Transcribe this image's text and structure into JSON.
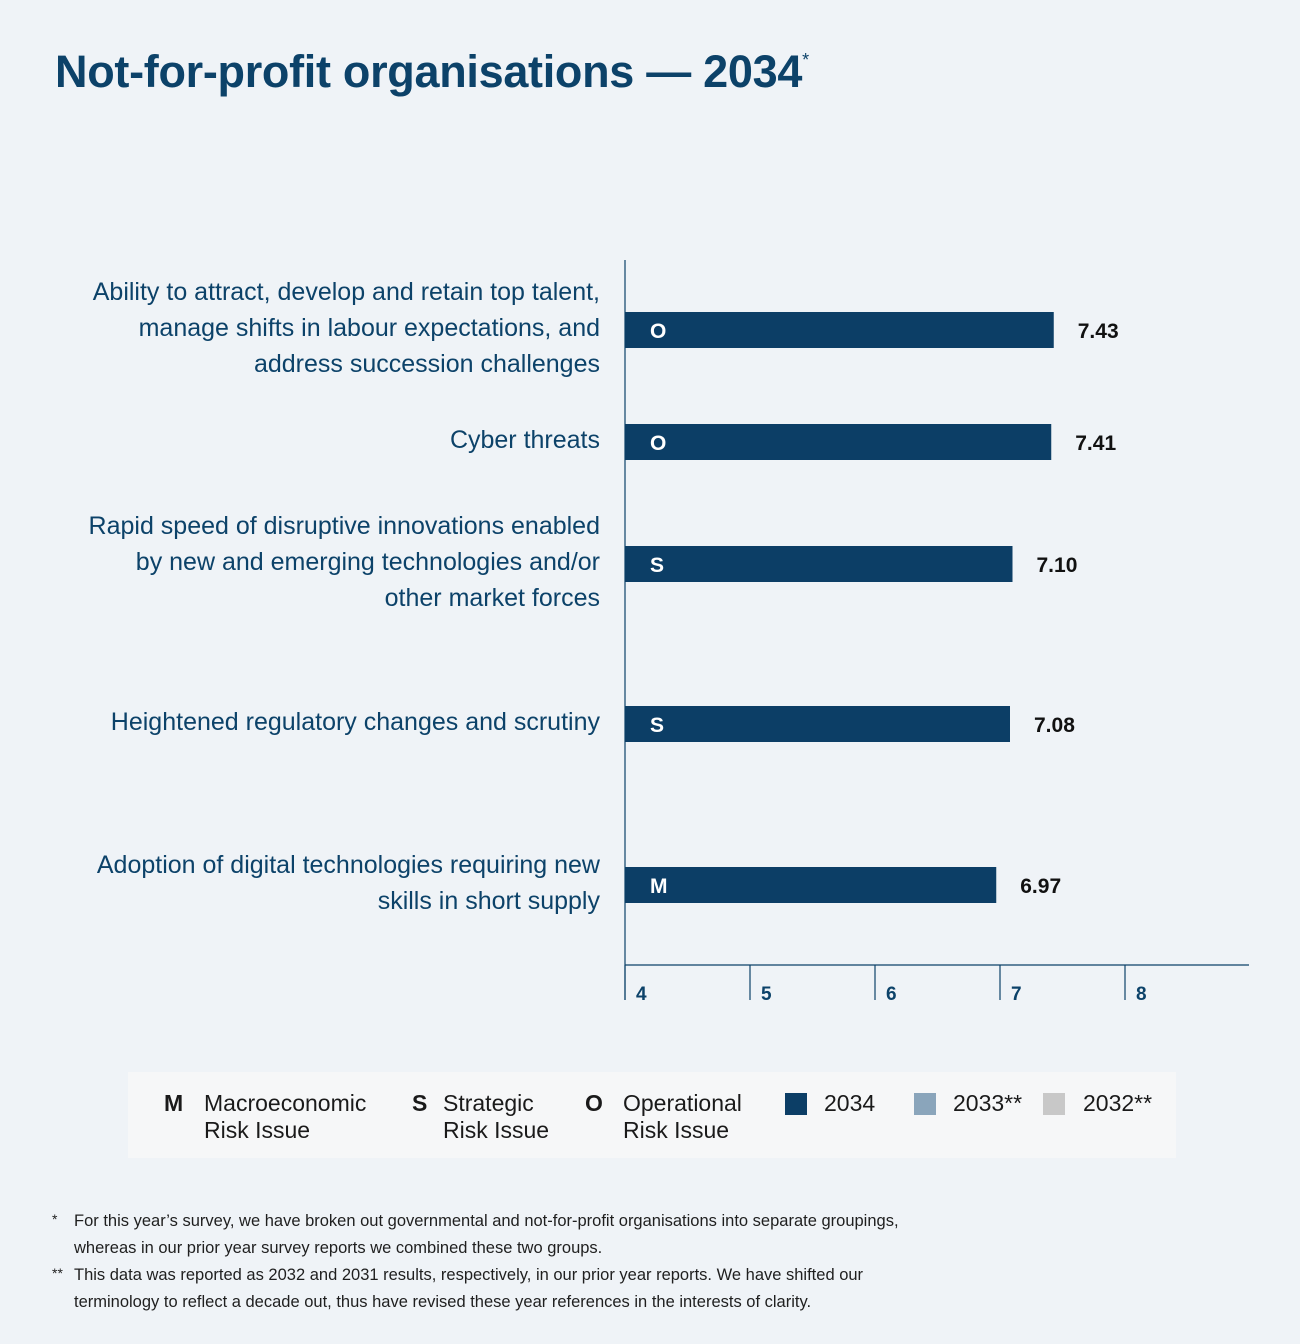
{
  "title": "Not-for-profit organisations — 2034",
  "title_mark": "*",
  "chart_data": {
    "type": "bar",
    "orientation": "horizontal",
    "title": "Not-for-profit organisations — 2034",
    "categories": [
      "Ability to attract, develop and retain top talent, manage shifts in labour expectations, and address succession challenges",
      "Cyber threats",
      "Rapid speed of disruptive innovations enabled by new and emerging technologies and/or other market forces",
      "Heightened regulatory changes and scrutiny",
      "Adoption of digital technologies requiring new skills in short supply"
    ],
    "category_lines": [
      [
        "Ability to attract, develop and retain top talent,",
        "manage shifts in labour expectations, and",
        "address succession challenges"
      ],
      [
        "Cyber threats"
      ],
      [
        "Rapid speed of disruptive innovations enabled",
        "by new and emerging technologies and/or",
        "other market forces"
      ],
      [
        "Heightened regulatory changes and scrutiny"
      ],
      [
        "Adoption of digital technologies requiring new",
        "skills in short supply"
      ]
    ],
    "series": [
      {
        "name": "2034",
        "values": [
          7.43,
          7.41,
          7.1,
          7.08,
          6.97
        ],
        "labels": [
          "7.43",
          "7.41",
          "7.10",
          "7.08",
          "6.97"
        ],
        "codes": [
          "O",
          "O",
          "S",
          "S",
          "M"
        ]
      }
    ],
    "xlim": [
      4,
      9
    ],
    "x_ticks": [
      "4",
      "5",
      "6",
      "7",
      "8"
    ],
    "xlabel": "",
    "ylabel": "",
    "grid": false,
    "legend_position": "bottom"
  },
  "legend": {
    "codes": [
      {
        "code": "M",
        "line1": "Macroeconomic",
        "line2": "Risk Issue"
      },
      {
        "code": "S",
        "line1": "Strategic",
        "line2": "Risk Issue"
      },
      {
        "code": "O",
        "line1": "Operational",
        "line2": "Risk Issue"
      }
    ],
    "years": [
      {
        "label": "2034",
        "color": "#0c3e66"
      },
      {
        "label": "2033**",
        "color": "#8aa5bb"
      },
      {
        "label": "2032**",
        "color": "#c8c8c8"
      }
    ]
  },
  "footnotes": [
    {
      "mark": "*",
      "text": "For this year’s survey, we have broken out governmental and not-for-profit organisations into separate groupings, whereas in our prior year survey reports we combined these two groups."
    },
    {
      "mark": "**",
      "text": "This data was reported as 2032 and 2031 results, respectively, in our prior year reports. We have shifted our terminology to reflect a decade out, thus have revised these year references in the interests of clarity."
    }
  ],
  "colors": {
    "bar": "#0c3e66",
    "axis": "#0c4269",
    "label_text": "#0c4269",
    "background": "#eff3f7",
    "legend_bg": "#f6f7f8"
  }
}
